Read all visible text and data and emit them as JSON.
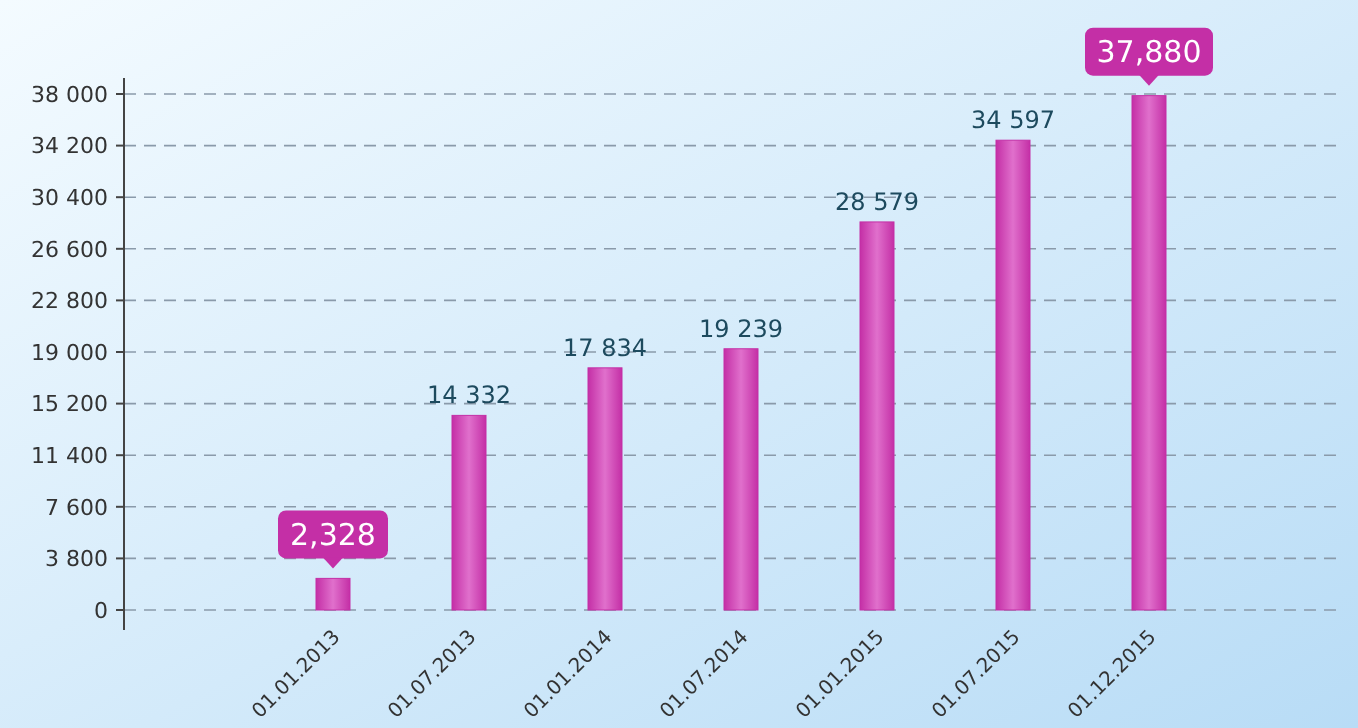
{
  "chart_data": {
    "type": "bar",
    "categories": [
      "01.01.2013",
      "01.07.2013",
      "01.01.2014",
      "01.07.2014",
      "01.01.2015",
      "01.07.2015",
      "01.12.2015"
    ],
    "values": [
      2328,
      14332,
      17834,
      19239,
      28579,
      34597,
      37880
    ],
    "color": "#c42fa6",
    "value_labels": [
      "2,328",
      "14 332",
      "17 834",
      "19 239",
      "28 579",
      "34 597",
      "37,880"
    ],
    "ylim": [
      0,
      38000
    ],
    "yticks": [
      {
        "value": 0,
        "label": "0"
      },
      {
        "value": 3800,
        "label": "3 800"
      },
      {
        "value": 7600,
        "label": "7 600"
      },
      {
        "value": 11400,
        "label": "11 400"
      },
      {
        "value": 15200,
        "label": "15 200"
      },
      {
        "value": 19000,
        "label": "19 000"
      },
      {
        "value": 22800,
        "label": "22 800"
      },
      {
        "value": 26600,
        "label": "26 600"
      },
      {
        "value": 30400,
        "label": "30 400"
      },
      {
        "value": 34200,
        "label": "34 200"
      },
      {
        "value": 38000,
        "label": "38 000"
      }
    ],
    "grid": "y"
  }
}
